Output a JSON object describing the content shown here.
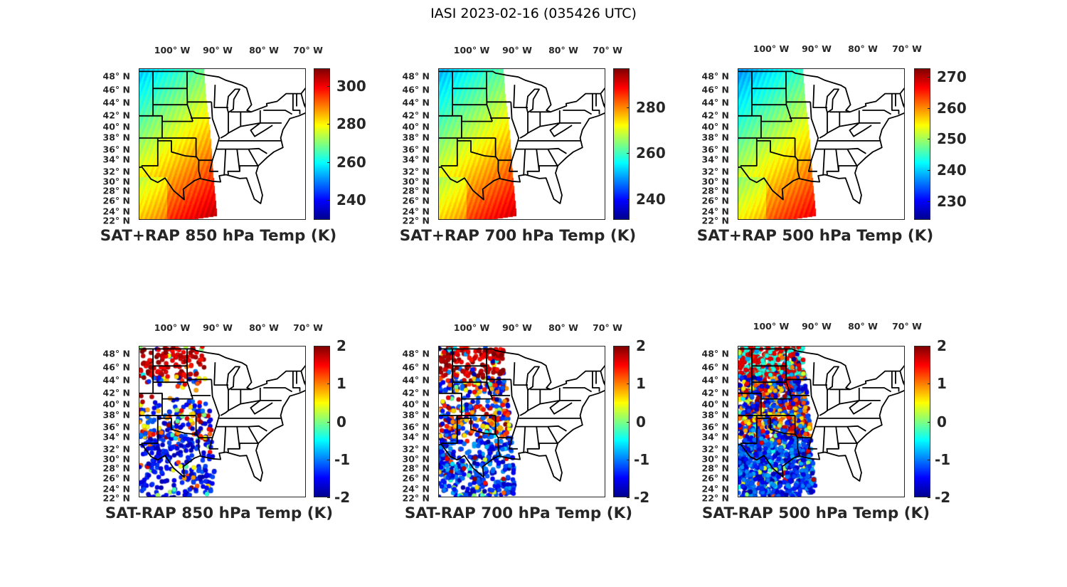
{
  "title": "IASI 2023-02-16 (035426 UTC)",
  "lon_labels": [
    "100° W",
    "90° W",
    "80° W",
    "70° W"
  ],
  "lat_labels": [
    "48° N",
    "46° N",
    "44° N",
    "42° N",
    "40° N",
    "38° N",
    "36° N",
    "34° N",
    "32° N",
    "30° N",
    "28° N",
    "26° N",
    "24° N",
    "22° N"
  ],
  "colormap": "jet",
  "panels": [
    {
      "title": "SAT+RAP 850 hPa Temp (K)",
      "kind": "field",
      "colorbar": {
        "min": 229.5,
        "max": 309.4,
        "ticks": [
          "240",
          "260",
          "280",
          "300"
        ]
      }
    },
    {
      "title": "SAT+RAP 700 hPa Temp (K)",
      "kind": "field",
      "colorbar": {
        "min": 231,
        "max": 297,
        "ticks": [
          "240",
          "260",
          "280"
        ]
      }
    },
    {
      "title": "SAT+RAP 500 hPa Temp (K)",
      "kind": "field",
      "colorbar": {
        "min": 224,
        "max": 272.7,
        "ticks": [
          "230",
          "240",
          "250",
          "260",
          "270"
        ]
      }
    },
    {
      "title": "SAT-RAP 850 hPa Temp (K)",
      "kind": "diff",
      "colorbar": {
        "min": -2,
        "max": 2,
        "ticks": [
          "-2",
          "-1",
          "0",
          "1",
          "2"
        ]
      }
    },
    {
      "title": "SAT-RAP 700 hPa Temp (K)",
      "kind": "diff",
      "colorbar": {
        "min": -2,
        "max": 2,
        "ticks": [
          "-2",
          "-1",
          "0",
          "1",
          "2"
        ]
      }
    },
    {
      "title": "SAT-RAP 500 hPa Temp (K)",
      "kind": "diff",
      "colorbar": {
        "min": -2,
        "max": 2,
        "ticks": [
          "-2",
          "-1",
          "0",
          "1",
          "2"
        ]
      }
    }
  ]
}
